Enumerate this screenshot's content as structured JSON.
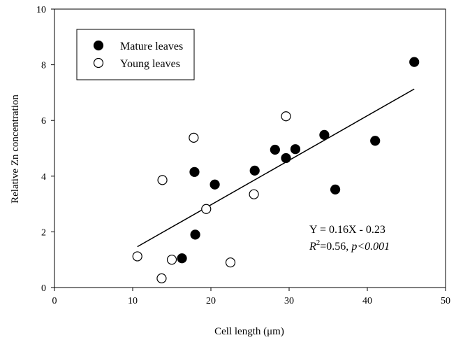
{
  "chart_data": {
    "type": "scatter",
    "xlabel": "Cell length (μm)",
    "ylabel": "Relative Zn concentration",
    "xlim": [
      0,
      50
    ],
    "ylim": [
      0,
      10
    ],
    "xticks": [
      0,
      10,
      20,
      30,
      40,
      50
    ],
    "yticks": [
      0,
      2,
      4,
      6,
      8,
      10
    ],
    "grid": false,
    "legend_position": "top-left",
    "series": [
      {
        "name": "Mature leaves",
        "marker": "filled-circle",
        "color": "#000000",
        "points": [
          {
            "x": 16.3,
            "y": 1.05
          },
          {
            "x": 18.0,
            "y": 1.9
          },
          {
            "x": 17.9,
            "y": 4.15
          },
          {
            "x": 20.5,
            "y": 3.7
          },
          {
            "x": 25.6,
            "y": 4.2
          },
          {
            "x": 28.2,
            "y": 4.95
          },
          {
            "x": 29.6,
            "y": 4.65
          },
          {
            "x": 30.8,
            "y": 4.97
          },
          {
            "x": 34.5,
            "y": 5.48
          },
          {
            "x": 35.9,
            "y": 3.52
          },
          {
            "x": 41.0,
            "y": 5.27
          },
          {
            "x": 46.0,
            "y": 8.1
          }
        ]
      },
      {
        "name": "Young leaves",
        "marker": "open-circle",
        "color": "#000000",
        "points": [
          {
            "x": 10.6,
            "y": 1.12
          },
          {
            "x": 13.7,
            "y": 0.33
          },
          {
            "x": 13.8,
            "y": 3.86
          },
          {
            "x": 15.0,
            "y": 1.0
          },
          {
            "x": 17.8,
            "y": 5.38
          },
          {
            "x": 19.4,
            "y": 2.82
          },
          {
            "x": 22.5,
            "y": 0.9
          },
          {
            "x": 25.5,
            "y": 3.35
          },
          {
            "x": 29.6,
            "y": 6.15
          }
        ]
      }
    ],
    "regression_line": {
      "x_start": 10.6,
      "x_end": 46.0,
      "slope": 0.16,
      "intercept": -0.23
    },
    "annotations": {
      "equation": "Y = 0.16X - 0.23",
      "r2_prefix": "R",
      "r2_sup": "2",
      "r2_rest": "=0.56, ",
      "p_text": "p<0.001"
    }
  }
}
